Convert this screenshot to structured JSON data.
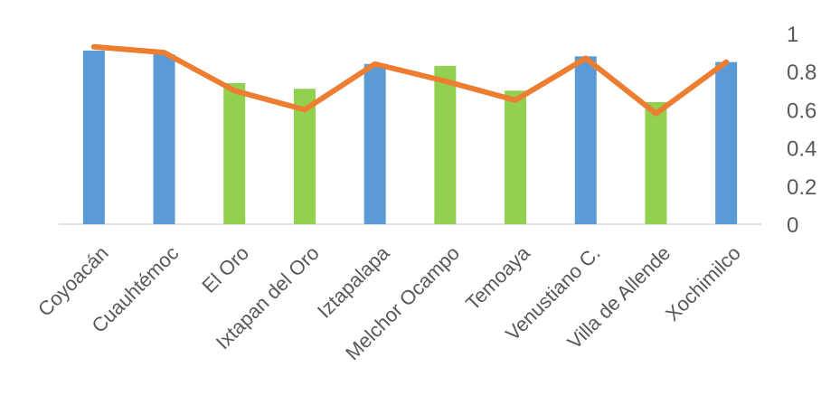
{
  "chart_data": {
    "type": "bar",
    "title": "",
    "xlabel": "",
    "ylabel": "",
    "categories": [
      "Coyoacán",
      "Cuauhtémoc",
      "El Oro",
      "Ixtapan del Oro",
      "Iztapalapa",
      "Melchor Ocampo",
      "Temoaya",
      "Venustiano C.",
      "Villa de Allende",
      "Xochimilco"
    ],
    "series": [
      {
        "kind": "bar",
        "values": [
          0.91,
          0.89,
          0.74,
          0.71,
          0.84,
          0.83,
          0.7,
          0.88,
          0.64,
          0.85
        ],
        "bar_colors": [
          "#5b9bd5",
          "#5b9bd5",
          "#92d050",
          "#92d050",
          "#5b9bd5",
          "#92d050",
          "#92d050",
          "#5b9bd5",
          "#92d050",
          "#5b9bd5"
        ]
      },
      {
        "kind": "line",
        "values": [
          0.93,
          0.9,
          0.7,
          0.6,
          0.84,
          0.75,
          0.65,
          0.87,
          0.58,
          0.85
        ],
        "color": "#ed7d31"
      }
    ],
    "y_axis": {
      "side": "right",
      "min": 0,
      "max": 1,
      "ticks": [
        "0",
        "0.2",
        "0.4",
        "0.6",
        "0.8",
        "1"
      ]
    },
    "grid": false,
    "legend": "none"
  }
}
